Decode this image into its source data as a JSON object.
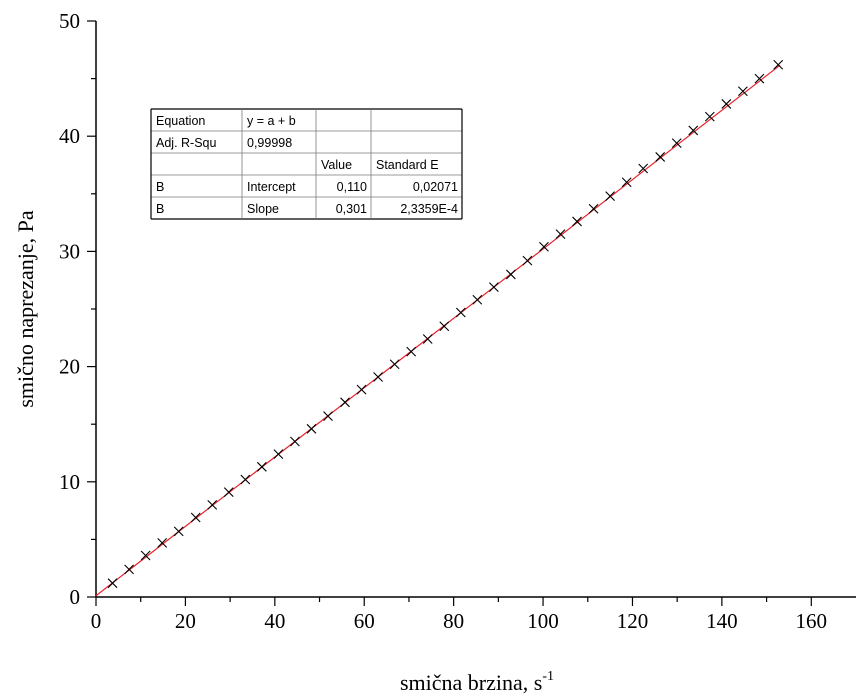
{
  "chart_data": {
    "type": "scatter",
    "title": "",
    "xlabel": "smična brzina, s",
    "xlabel_superscript": "-1",
    "ylabel": "smično naprezanje, Pa",
    "xlim": [
      0,
      170
    ],
    "ylim": [
      0,
      50
    ],
    "xticks": [
      0,
      20,
      40,
      60,
      80,
      100,
      120,
      140,
      160
    ],
    "yticks": [
      0,
      10,
      20,
      30,
      40,
      50
    ],
    "grid": false,
    "colors": {
      "points": "#000000",
      "fit_line": "#e8242b",
      "axes": "#000000"
    },
    "series": [
      {
        "marker": "x",
        "x": [
          3.7,
          7.4,
          11.1,
          14.8,
          18.5,
          22.3,
          26.0,
          29.7,
          33.4,
          37.1,
          40.8,
          44.5,
          48.2,
          51.9,
          55.7,
          59.4,
          63.1,
          66.8,
          70.5,
          74.2,
          77.9,
          81.6,
          85.3,
          89.0,
          92.8,
          96.5,
          100.2,
          103.9,
          107.6,
          111.3,
          115.0,
          118.7,
          122.4,
          126.2,
          129.9,
          133.6,
          137.3,
          141.0,
          144.7,
          148.4,
          152.6
        ],
        "y": [
          1.2,
          2.4,
          3.6,
          4.7,
          5.7,
          6.9,
          8.0,
          9.1,
          10.2,
          11.3,
          12.4,
          13.5,
          14.6,
          15.7,
          16.9,
          18.0,
          19.1,
          20.2,
          21.3,
          22.4,
          23.5,
          24.7,
          25.8,
          26.9,
          28.0,
          29.2,
          30.4,
          31.5,
          32.6,
          33.7,
          34.8,
          36.0,
          37.2,
          38.2,
          39.4,
          40.5,
          41.7,
          42.8,
          43.9,
          45.0,
          46.2
        ]
      }
    ],
    "fit_line": {
      "intercept": 0.11,
      "slope": 0.301,
      "x_range": [
        0,
        153
      ]
    },
    "legend": "none",
    "fit_table": {
      "rows": [
        [
          "Equation",
          "y = a + b",
          "",
          ""
        ],
        [
          "Adj. R-Squ",
          "0,99998",
          "",
          ""
        ],
        [
          "",
          "",
          "Value",
          "Standard E"
        ],
        [
          "B",
          "Intercept",
          "0,110",
          "0,02071"
        ],
        [
          "B",
          "Slope",
          "0,301",
          "2,3359E-4"
        ]
      ]
    }
  }
}
